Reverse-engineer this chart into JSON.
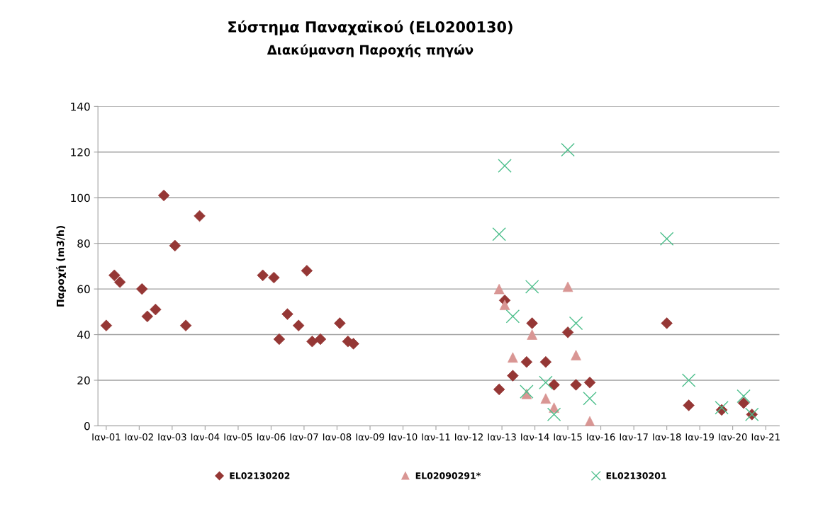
{
  "chart_data": {
    "type": "scatter",
    "title": "Σύστημα Παναχαϊκού (EL0200130)",
    "subtitle": "Διακύμανση Παροχής πηγών",
    "ylabel": "Παροχή (m3/h)",
    "xlim": [
      "2000-10",
      "2021-06"
    ],
    "xticks": [
      {
        "value": "2001-01",
        "label": "Ιαν-01"
      },
      {
        "value": "2002-01",
        "label": "Ιαν-02"
      },
      {
        "value": "2003-01",
        "label": "Ιαν-03"
      },
      {
        "value": "2004-01",
        "label": "Ιαν-04"
      },
      {
        "value": "2005-01",
        "label": "Ιαν-05"
      },
      {
        "value": "2006-01",
        "label": "Ιαν-06"
      },
      {
        "value": "2007-01",
        "label": "Ιαν-07"
      },
      {
        "value": "2008-01",
        "label": "Ιαν-08"
      },
      {
        "value": "2009-01",
        "label": "Ιαν-09"
      },
      {
        "value": "2010-01",
        "label": "Ιαν-10"
      },
      {
        "value": "2011-01",
        "label": "Ιαν-11"
      },
      {
        "value": "2012-01",
        "label": "Ιαν-12"
      },
      {
        "value": "2013-01",
        "label": "Ιαν-13"
      },
      {
        "value": "2014-01",
        "label": "Ιαν-14"
      },
      {
        "value": "2015-01",
        "label": "Ιαν-15"
      },
      {
        "value": "2016-01",
        "label": "Ιαν-16"
      },
      {
        "value": "2017-01",
        "label": "Ιαν-17"
      },
      {
        "value": "2018-01",
        "label": "Ιαν-18"
      },
      {
        "value": "2019-01",
        "label": "Ιαν-19"
      },
      {
        "value": "2020-01",
        "label": "Ιαν-20"
      },
      {
        "value": "2021-01",
        "label": "Ιαν-21"
      }
    ],
    "ylim": [
      0,
      140
    ],
    "yticks": [
      0,
      20,
      40,
      60,
      80,
      100,
      120,
      140
    ],
    "grid": "y",
    "legend": "bottom",
    "series": [
      {
        "name": "EL02130202",
        "color": "#953735",
        "marker": "diamond",
        "x": [
          "2001-01",
          "2001-04",
          "2001-06",
          "2002-02",
          "2002-04",
          "2002-07",
          "2002-10",
          "2003-02",
          "2003-06",
          "2003-11",
          "2005-10",
          "2006-02",
          "2006-04",
          "2006-07",
          "2006-11",
          "2007-02",
          "2007-04",
          "2007-07",
          "2008-02",
          "2008-05",
          "2008-07",
          "2012-12",
          "2013-02",
          "2013-05",
          "2013-10",
          "2013-12",
          "2014-05",
          "2014-08",
          "2015-01",
          "2015-04",
          "2015-09",
          "2018-01",
          "2018-09",
          "2019-09",
          "2020-05",
          "2020-08"
        ],
        "values": [
          44,
          66,
          63,
          60,
          48,
          51,
          101,
          79,
          44,
          92,
          66,
          65,
          38,
          49,
          44,
          68,
          37,
          38,
          45,
          37,
          36,
          16,
          55,
          22,
          28,
          45,
          28,
          18,
          41,
          18,
          19,
          45,
          9,
          7,
          10,
          5
        ]
      },
      {
        "name": "EL02090291*",
        "color": "#d99694",
        "marker": "triangle",
        "x": [
          "2012-12",
          "2013-02",
          "2013-05",
          "2013-10",
          "2013-12",
          "2014-05",
          "2014-08",
          "2015-01",
          "2015-04",
          "2015-09"
        ],
        "values": [
          60,
          53,
          30,
          14,
          40,
          12,
          8,
          61,
          31,
          2
        ]
      },
      {
        "name": "EL02130201",
        "color": "#4dbf8c",
        "marker": "cross",
        "x": [
          "2012-12",
          "2013-02",
          "2013-05",
          "2013-10",
          "2013-12",
          "2014-05",
          "2014-08",
          "2015-01",
          "2015-04",
          "2015-09",
          "2018-01",
          "2018-09",
          "2019-09",
          "2020-05",
          "2020-08"
        ],
        "values": [
          84,
          114,
          48,
          15,
          61,
          19,
          5,
          121,
          45,
          12,
          82,
          20,
          8,
          13,
          5
        ]
      }
    ]
  }
}
